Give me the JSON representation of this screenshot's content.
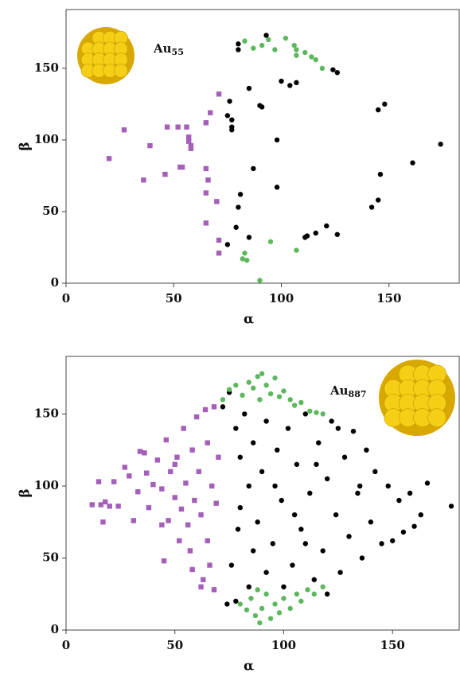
{
  "chart_data": [
    {
      "type": "scatter",
      "xlabel": "α",
      "ylabel": "β",
      "annotation": {
        "text": "Au",
        "subscript": "55"
      },
      "xlim": [
        0,
        183
      ],
      "ylim": [
        0,
        191
      ],
      "xticks": [
        0,
        50,
        100,
        150
      ],
      "yticks": [
        0,
        50,
        100,
        150
      ],
      "series": [
        {
          "color": "#a45fb8",
          "marker": "square",
          "x": [
            20,
            27,
            39,
            36,
            47,
            52,
            56,
            46,
            53,
            54,
            57,
            57,
            58,
            58,
            65,
            67,
            71,
            65,
            66,
            65,
            70,
            65,
            71,
            71
          ],
          "values": [
            87,
            107,
            96,
            72,
            109,
            109,
            109,
            76,
            81,
            81,
            102,
            99,
            96,
            94,
            112,
            119,
            132,
            80,
            72,
            63,
            57,
            42,
            30,
            21
          ]
        },
        {
          "color": "#000000",
          "marker": "circle",
          "x": [
            80,
            80,
            93,
            76,
            75,
            77,
            77,
            77,
            85,
            90,
            91,
            100,
            104,
            107,
            98,
            87,
            81,
            80,
            79,
            98,
            75,
            85,
            111,
            112,
            116,
            121,
            126,
            124,
            126,
            145,
            148,
            146,
            145,
            142,
            161,
            174
          ],
          "values": [
            167,
            163,
            173,
            127,
            117,
            114,
            109,
            107,
            136,
            124,
            123,
            141,
            138,
            140,
            100,
            80,
            62,
            53,
            39,
            67,
            27,
            32,
            32,
            33,
            35,
            40,
            34,
            149,
            147,
            121,
            125,
            76,
            58,
            53,
            84,
            97
          ]
        },
        {
          "color": "#5cb85c",
          "marker": "circle",
          "x": [
            83,
            87,
            91,
            94,
            97,
            102,
            106,
            107,
            107,
            111,
            114,
            116,
            119,
            83,
            82,
            84,
            95,
            107,
            90
          ],
          "values": [
            169,
            164,
            166,
            170,
            163,
            171,
            166,
            163,
            159,
            161,
            158,
            156,
            150,
            21,
            17,
            16,
            29,
            23,
            2
          ]
        }
      ]
    },
    {
      "type": "scatter",
      "xlabel": "α",
      "ylabel": "β",
      "annotation": {
        "text": "Au",
        "subscript": "887"
      },
      "xlim": [
        0,
        181
      ],
      "ylim": [
        0,
        190
      ],
      "xticks": [
        0,
        50,
        100,
        150
      ],
      "yticks": [
        0,
        50,
        100,
        150
      ],
      "series": [
        {
          "color": "#a45fb8",
          "marker": "square",
          "x": [
            12,
            15,
            16,
            17,
            18,
            20,
            22,
            24,
            27,
            29,
            31,
            33,
            34,
            36,
            37,
            38,
            40,
            42,
            44,
            45,
            46,
            47,
            48,
            50,
            51,
            52,
            53,
            54,
            55,
            56,
            57,
            58,
            59,
            60,
            61,
            62,
            63,
            64,
            65,
            65,
            66,
            67,
            68,
            68,
            69,
            70,
            62,
            58,
            50,
            44
          ],
          "values": [
            87,
            103,
            87,
            75,
            89,
            86,
            103,
            86,
            113,
            107,
            76,
            96,
            124,
            123,
            109,
            85,
            101,
            118,
            98,
            48,
            132,
            76,
            110,
            92,
            120,
            62,
            84,
            140,
            102,
            73,
            55,
            125,
            90,
            148,
            110,
            80,
            35,
            153,
            130,
            62,
            45,
            100,
            155,
            28,
            88,
            120,
            30,
            42,
            115,
            73
          ]
        },
        {
          "color": "#000000",
          "marker": "circle",
          "x": [
            72,
            75,
            78,
            80,
            82,
            84,
            86,
            88,
            90,
            92,
            95,
            97,
            99,
            102,
            104,
            106,
            108,
            110,
            112,
            114,
            116,
            118,
            120,
            122,
            124,
            126,
            128,
            130,
            132,
            134,
            136,
            138,
            140,
            142,
            145,
            148,
            150,
            153,
            155,
            158,
            160,
            163,
            166,
            177,
            76,
            78,
            80,
            84,
            86,
            92,
            96,
            100,
            105,
            110,
            115,
            120,
            125,
            135,
            74,
            79
          ],
          "values": [
            155,
            165,
            140,
            120,
            150,
            100,
            130,
            75,
            110,
            145,
            60,
            125,
            90,
            140,
            45,
            115,
            70,
            150,
            95,
            35,
            130,
            55,
            105,
            145,
            80,
            40,
            120,
            65,
            138,
            95,
            50,
            125,
            75,
            110,
            60,
            100,
            62,
            90,
            68,
            95,
            72,
            80,
            102,
            86,
            45,
            20,
            85,
            30,
            55,
            40,
            100,
            30,
            80,
            60,
            115,
            25,
            140,
            100,
            18,
            70
          ]
        },
        {
          "color": "#5cb85c",
          "marker": "circle",
          "x": [
            72,
            75,
            78,
            81,
            84,
            86,
            88,
            90,
            92,
            94,
            96,
            98,
            100,
            103,
            105,
            108,
            112,
            115,
            118,
            89,
            80,
            83,
            85,
            87,
            89,
            90,
            92,
            94,
            96,
            98,
            100,
            103,
            106,
            108,
            111,
            114,
            118,
            88
          ],
          "values": [
            160,
            167,
            170,
            163,
            172,
            168,
            176,
            178,
            170,
            164,
            175,
            162,
            166,
            160,
            156,
            158,
            152,
            151,
            150,
            160,
            18,
            14,
            22,
            10,
            5,
            15,
            25,
            8,
            18,
            12,
            22,
            15,
            25,
            20,
            28,
            25,
            30,
            28
          ]
        }
      ]
    }
  ]
}
